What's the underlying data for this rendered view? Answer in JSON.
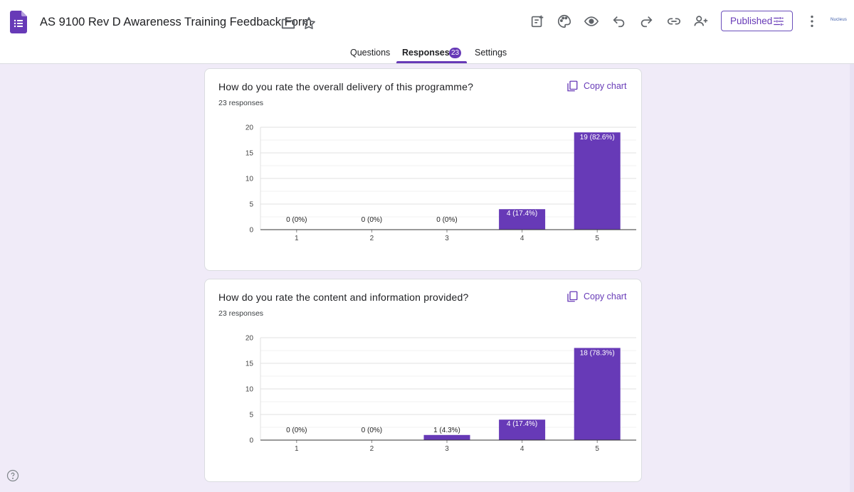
{
  "header": {
    "title": "AS 9100 Rev D Awareness Training Feedback Form",
    "publish_label": "Published",
    "account_logo_text": "Nucleus"
  },
  "tabs": [
    {
      "label": "Questions"
    },
    {
      "label": "Responses",
      "badge": "23"
    },
    {
      "label": "Settings"
    }
  ],
  "colors": {
    "accent": "#673ab7",
    "bar": "#673ab7",
    "background": "#f0ebf8"
  },
  "icons": [
    "forms-logo-icon",
    "folder-icon",
    "star-icon",
    "add-ons-icon",
    "palette-icon",
    "preview-icon",
    "undo-icon",
    "redo-icon",
    "link-icon",
    "add-collaborator-icon",
    "tune-icon",
    "more-vert-icon",
    "copy-icon",
    "help-icon"
  ],
  "questions": [
    {
      "title": "How do you rate the overall delivery of this programme?",
      "responses": "23 responses",
      "copy_label": "Copy chart"
    },
    {
      "title": "How do you rate the content and information provided?",
      "responses": "23 responses",
      "copy_label": "Copy chart"
    }
  ],
  "chart_data": [
    {
      "type": "bar",
      "categories": [
        "1",
        "2",
        "3",
        "4",
        "5"
      ],
      "values": [
        0,
        0,
        0,
        4,
        19
      ],
      "labels": [
        "0 (0%)",
        "0 (0%)",
        "0 (0%)",
        "4 (17.4%)",
        "19 (82.6%)"
      ],
      "yticks": [
        "0",
        "5",
        "10",
        "15",
        "20"
      ],
      "ylim": [
        0,
        20
      ],
      "grid": true
    },
    {
      "type": "bar",
      "categories": [
        "1",
        "2",
        "3",
        "4",
        "5"
      ],
      "values": [
        0,
        0,
        1,
        4,
        18
      ],
      "labels": [
        "0 (0%)",
        "0 (0%)",
        "1 (4.3%)",
        "4 (17.4%)",
        "18 (78.3%)"
      ],
      "yticks": [
        "0",
        "5",
        "10",
        "15",
        "20"
      ],
      "ylim": [
        0,
        20
      ],
      "grid": true
    }
  ]
}
